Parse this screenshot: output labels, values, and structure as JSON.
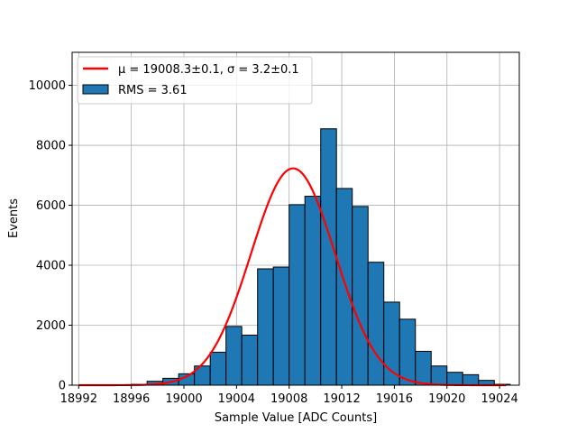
{
  "chart_data": {
    "type": "bar",
    "xlabel": "Sample Value [ADC Counts]",
    "ylabel": "Events",
    "xlim": [
      18991.5,
      19025.5
    ],
    "ylim": [
      0,
      11100
    ],
    "xticks": [
      18992,
      18996,
      19000,
      19004,
      19008,
      19012,
      19016,
      19020,
      19024
    ],
    "yticks": [
      0,
      2000,
      4000,
      6000,
      8000,
      10000
    ],
    "xtick_labels": [
      "18992",
      "18996",
      "19000",
      "19004",
      "19008",
      "19012",
      "19016",
      "19020",
      "19024"
    ],
    "ytick_labels": [
      "0",
      "2000",
      "4000",
      "6000",
      "8000",
      "10000"
    ],
    "grid": true,
    "legend_position": "top-left",
    "histogram": {
      "name": "RMS = 3.61",
      "color": "#1f77b4",
      "edgecolor": "#000000",
      "bin_width": 1.2,
      "bins": [
        {
          "x0": 18996.0,
          "value": 30
        },
        {
          "x0": 18997.2,
          "value": 130
        },
        {
          "x0": 18998.4,
          "value": 230
        },
        {
          "x0": 18999.6,
          "value": 380
        },
        {
          "x0": 19000.8,
          "value": 640
        },
        {
          "x0": 19002.0,
          "value": 1100
        },
        {
          "x0": 19003.2,
          "value": 1960
        },
        {
          "x0": 19004.4,
          "value": 1670
        },
        {
          "x0": 19005.6,
          "value": 3880
        },
        {
          "x0": 19006.8,
          "value": 3940
        },
        {
          "x0": 19008.0,
          "value": 6020
        },
        {
          "x0": 19009.2,
          "value": 6300
        },
        {
          "x0": 19010.4,
          "value": 8550
        },
        {
          "x0": 19011.6,
          "value": 6560
        },
        {
          "x0": 19012.8,
          "value": 5960
        },
        {
          "x0": 19014.0,
          "value": 4100
        },
        {
          "x0": 19015.2,
          "value": 2770
        },
        {
          "x0": 19016.4,
          "value": 2200
        },
        {
          "x0": 19017.6,
          "value": 1130
        },
        {
          "x0": 19018.8,
          "value": 640
        },
        {
          "x0": 19020.0,
          "value": 430
        },
        {
          "x0": 19021.2,
          "value": 350
        },
        {
          "x0": 19022.4,
          "value": 160
        },
        {
          "x0": 19023.6,
          "value": 30
        }
      ]
    },
    "fit": {
      "name": "μ = 19008.3±0.1, σ = 3.2±0.1",
      "color": "#ff0000",
      "mu": 19008.3,
      "sigma": 3.2,
      "amplitude": 7230,
      "x_range": [
        18992,
        19024.5
      ]
    }
  }
}
